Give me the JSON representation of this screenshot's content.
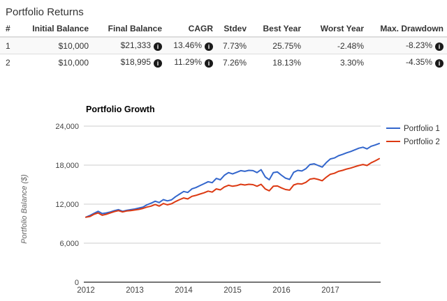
{
  "title": "Portfolio Returns",
  "icons": {
    "info_glyph": "i"
  },
  "table": {
    "headers": [
      "#",
      "Initial Balance",
      "Final Balance",
      "CAGR",
      "Stdev",
      "Best Year",
      "Worst Year",
      "Max. Drawdown"
    ],
    "rows": [
      {
        "num": "1",
        "initial": "$10,000",
        "final": "$21,333",
        "cagr": "13.46%",
        "stdev": "7.73%",
        "best": "25.75%",
        "worst": "-2.48%",
        "drawdown": "-8.23%"
      },
      {
        "num": "2",
        "initial": "$10,000",
        "final": "$18,995",
        "cagr": "11.29%",
        "stdev": "7.26%",
        "best": "18.13%",
        "worst": "3.30%",
        "drawdown": "-4.35%"
      }
    ]
  },
  "chart_data": {
    "type": "line",
    "title": "Portfolio Growth",
    "xlabel": "",
    "ylabel": "Portfolio Balance ($)",
    "x_labels": [
      "2012",
      "2013",
      "2014",
      "2015",
      "2016",
      "2017"
    ],
    "x_range": [
      2012,
      2018
    ],
    "points_per_year": 12,
    "ylim": [
      0,
      24000
    ],
    "yticks": [
      0,
      6000,
      12000,
      18000,
      24000
    ],
    "ytick_labels": [
      "0",
      "6,000",
      "12,000",
      "18,000",
      "24,000"
    ],
    "grid": true,
    "legend_position": "right",
    "colors": {
      "grid": "#cccccc",
      "axis": "#757575",
      "tick_text": "#444444",
      "title_text": "#000000",
      "axis_label_text": "#666666",
      "legend_text": "#333333"
    },
    "series": [
      {
        "name": "Portfolio 1",
        "color": "#3366cc",
        "values": [
          10000,
          10250,
          10600,
          10900,
          10550,
          10650,
          10800,
          11000,
          11150,
          10900,
          11050,
          11150,
          11250,
          11400,
          11550,
          11900,
          12150,
          12450,
          12250,
          12700,
          12500,
          12650,
          13150,
          13550,
          13950,
          13800,
          14350,
          14550,
          14850,
          15150,
          15450,
          15300,
          15950,
          15750,
          16450,
          16850,
          16650,
          16900,
          17150,
          17050,
          17200,
          17150,
          16850,
          17300,
          16200,
          15750,
          16850,
          16950,
          16450,
          16000,
          15800,
          16900,
          17200,
          17100,
          17450,
          18100,
          18200,
          17950,
          17700,
          18400,
          18950,
          19100,
          19450,
          19650,
          19900,
          20100,
          20350,
          20600,
          20750,
          20500,
          20900,
          21100,
          21333
        ]
      },
      {
        "name": "Portfolio 2",
        "color": "#dc3912",
        "values": [
          10000,
          10100,
          10450,
          10650,
          10300,
          10450,
          10650,
          10850,
          11000,
          10800,
          10950,
          11000,
          11100,
          11200,
          11350,
          11550,
          11700,
          11950,
          11700,
          12100,
          11900,
          12050,
          12400,
          12700,
          12950,
          12800,
          13200,
          13350,
          13550,
          13750,
          14000,
          13850,
          14350,
          14200,
          14650,
          14900,
          14750,
          14850,
          15050,
          14950,
          15050,
          15000,
          14750,
          15050,
          14350,
          14050,
          14750,
          14800,
          14500,
          14250,
          14150,
          14950,
          15150,
          15100,
          15350,
          15850,
          15950,
          15800,
          15600,
          16150,
          16600,
          16750,
          17050,
          17200,
          17400,
          17550,
          17750,
          17950,
          18100,
          17950,
          18350,
          18650,
          18995
        ]
      }
    ]
  }
}
